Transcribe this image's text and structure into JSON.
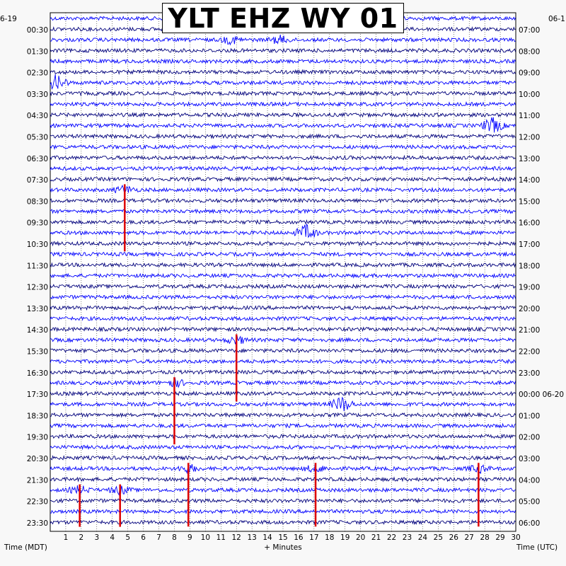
{
  "chart_data": {
    "type": "helicorder",
    "title": "YLT EHZ WY 01",
    "date_left": "6-19",
    "date_right": "06-1",
    "left_axis_title": "Time (MDT)",
    "right_axis_title": "Time (UTC)",
    "x_axis_title": "+ Minutes",
    "x_range": [
      0,
      30
    ],
    "x_ticks": [
      "1",
      "2",
      "3",
      "4",
      "5",
      "6",
      "7",
      "8",
      "9",
      "10",
      "11",
      "12",
      "13",
      "14",
      "15",
      "16",
      "17",
      "18",
      "19",
      "20",
      "21",
      "22",
      "23",
      "24",
      "25",
      "26",
      "27",
      "28",
      "29",
      "30"
    ],
    "left_labels": [
      "00:30",
      "01:30",
      "02:30",
      "03:30",
      "04:30",
      "05:30",
      "06:30",
      "07:30",
      "08:30",
      "09:30",
      "10:30",
      "11:30",
      "12:30",
      "13:30",
      "14:30",
      "15:30",
      "16:30",
      "17:30",
      "18:30",
      "19:30",
      "20:30",
      "21:30",
      "22:30",
      "23:30"
    ],
    "right_labels": [
      "07:00",
      "08:00",
      "09:00",
      "10:00",
      "11:00",
      "12:00",
      "13:00",
      "14:00",
      "15:00",
      "16:00",
      "17:00",
      "18:00",
      "19:00",
      "20:00",
      "21:00",
      "22:00",
      "23:00",
      "00:00 06-20",
      "01:00",
      "02:00",
      "03:00",
      "04:00",
      "05:00",
      "06:00"
    ],
    "trace_colors": [
      "#0000ff",
      "#00007c"
    ],
    "event_color": "#dd0000",
    "grid_color": "#000000",
    "trace_count": 48,
    "minutes_per_trace": 30,
    "events": [
      {
        "hour_label": "01:30",
        "minute": 11.7,
        "note": "spike"
      },
      {
        "hour_label": "01:30",
        "minute": 14.8,
        "note": "spike"
      },
      {
        "hour_label": "03:30",
        "minute": 0.4,
        "note": "burst"
      },
      {
        "hour_label": "05:30",
        "minute": 28.5,
        "note": "burst"
      },
      {
        "hour_label": "08:30",
        "minute": 4.8,
        "note": "red event"
      },
      {
        "hour_label": "10:30",
        "minute": 16.5,
        "note": "burst"
      },
      {
        "hour_label": "15:30",
        "minute": 12.0,
        "note": "red event"
      },
      {
        "hour_label": "17:30",
        "minute": 8.0,
        "note": "red event"
      },
      {
        "hour_label": "18:30",
        "minute": 18.8,
        "note": "burst"
      },
      {
        "hour_label": "21:30",
        "minute": 8.9,
        "note": "red event"
      },
      {
        "hour_label": "21:30",
        "minute": 17.1,
        "note": "red event"
      },
      {
        "hour_label": "21:30",
        "minute": 27.6,
        "note": "red event"
      },
      {
        "hour_label": "22:30",
        "minute": 1.9,
        "note": "red event"
      },
      {
        "hour_label": "22:30",
        "minute": 4.5,
        "note": "red event"
      }
    ]
  }
}
